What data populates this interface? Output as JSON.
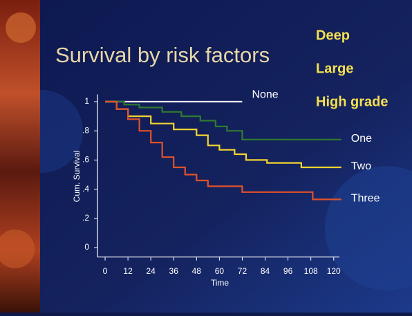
{
  "chart_data": {
    "type": "line",
    "step": true,
    "title": "Survival by risk factors",
    "annotations": [
      "Deep",
      "Large",
      "High grade"
    ],
    "xlabel": "Time",
    "ylabel": "Cum. Survival",
    "xlim": [
      -4,
      123
    ],
    "ylim": [
      -0.065,
      1.05
    ],
    "xticks": [
      0,
      12,
      24,
      36,
      48,
      60,
      72,
      84,
      96,
      108,
      120
    ],
    "yticks": [
      1,
      {
        "value": 0.8,
        "label": ".8"
      },
      {
        "value": 0.6,
        "label": ".6"
      },
      {
        "value": 0.4,
        "label": ".4"
      },
      {
        "value": 0.2,
        "label": ".2"
      },
      0
    ],
    "series": [
      {
        "name": "None",
        "color": "#ffffff",
        "x": [
          0,
          72
        ],
        "values": [
          1,
          1
        ]
      },
      {
        "name": "One",
        "color": "#2f7a2f",
        "x": [
          0,
          10,
          10,
          18,
          18,
          30,
          30,
          40,
          40,
          50,
          50,
          58,
          58,
          64,
          64,
          72,
          72,
          124
        ],
        "values": [
          1,
          1,
          0.98,
          0.98,
          0.96,
          0.96,
          0.93,
          0.93,
          0.9,
          0.9,
          0.87,
          0.87,
          0.83,
          0.83,
          0.8,
          0.8,
          0.74,
          0.74
        ]
      },
      {
        "name": "Two",
        "color": "#f5d530",
        "x": [
          0,
          6,
          6,
          12,
          12,
          24,
          24,
          36,
          36,
          48,
          48,
          54,
          54,
          60,
          60,
          68,
          68,
          74,
          74,
          85,
          85,
          103,
          103,
          124
        ],
        "values": [
          1,
          1,
          0.95,
          0.95,
          0.9,
          0.9,
          0.85,
          0.85,
          0.81,
          0.81,
          0.77,
          0.77,
          0.7,
          0.7,
          0.67,
          0.67,
          0.64,
          0.64,
          0.6,
          0.6,
          0.58,
          0.58,
          0.55,
          0.55
        ]
      },
      {
        "name": "Three",
        "color": "#e0522a",
        "x": [
          0,
          6,
          6,
          12,
          12,
          18,
          18,
          24,
          24,
          30,
          30,
          36,
          36,
          42,
          42,
          48,
          48,
          54,
          54,
          72,
          72,
          109,
          109,
          124
        ],
        "values": [
          1,
          1,
          0.95,
          0.95,
          0.88,
          0.88,
          0.8,
          0.8,
          0.72,
          0.72,
          0.62,
          0.62,
          0.55,
          0.55,
          0.5,
          0.5,
          0.46,
          0.46,
          0.42,
          0.42,
          0.38,
          0.38,
          0.33,
          0.33
        ]
      }
    ]
  }
}
